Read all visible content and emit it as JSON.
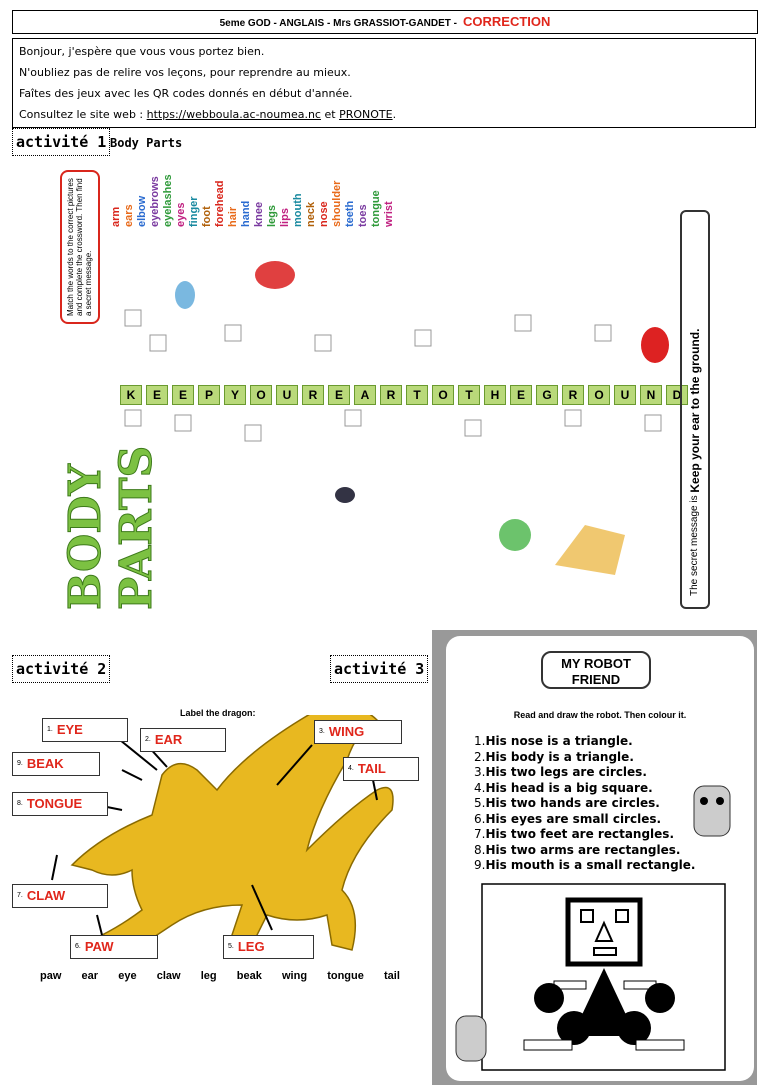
{
  "header": {
    "class_info": "5eme GOD - ANGLAIS - Mrs GRASSIOT-GANDET -",
    "correction": "CORRECTION"
  },
  "intro": {
    "lines": [
      "Bonjour, j'espère que vous vous portez bien.",
      "N'oubliez pas de relire vos leçons, pour reprendre au mieux.",
      "Faîtes des jeux avec les QR codes donnés en début d'année."
    ],
    "consult_prefix": "Consultez le site web :",
    "link": "https://webboula.ac-noumea.nc",
    "joiner": "et",
    "pronote": "PRONOTE",
    "end": "."
  },
  "activity1": {
    "label": "activité 1",
    "title": "Body Parts",
    "poster_title": "BODY PARTS",
    "instructions": "Match the words to the correct pictures and complete the crossword. Then find a secret message.",
    "words": [
      "arm",
      "ears",
      "elbow",
      "eyebrows",
      "eyelashes",
      "eyes",
      "finger",
      "foot",
      "forehead",
      "hair",
      "hand",
      "knee",
      "legs",
      "lips",
      "mouth",
      "neck",
      "nose",
      "shoulder",
      "teeth",
      "toes",
      "tongue",
      "wrist"
    ],
    "key_row": [
      "K",
      "E",
      "E",
      "P",
      "Y",
      "O",
      "U",
      "R",
      "E",
      "A",
      "R",
      "T",
      "O",
      "T",
      "H",
      "E",
      "G",
      "R",
      "O",
      "U",
      "N",
      "D"
    ],
    "secret_prefix": "The secret message is",
    "secret": "Keep your ear to the ground."
  },
  "activity2": {
    "label": "activité 2",
    "dragon_title": "Label the dragon:",
    "labels": [
      {
        "num": "1.",
        "text": "EYE"
      },
      {
        "num": "2.",
        "text": "EAR"
      },
      {
        "num": "3.",
        "text": "WING"
      },
      {
        "num": "4.",
        "text": "TAIL"
      },
      {
        "num": "9.",
        "text": "BEAK"
      },
      {
        "num": "8.",
        "text": "TONGUE"
      },
      {
        "num": "7.",
        "text": "CLAW"
      },
      {
        "num": "6.",
        "text": "PAW"
      },
      {
        "num": "5.",
        "text": "LEG"
      }
    ],
    "word_bank": [
      "paw",
      "ear",
      "eye",
      "claw",
      "leg",
      "beak",
      "wing",
      "tongue",
      "tail"
    ]
  },
  "activity3": {
    "label": "activité 3",
    "title": "MY ROBOT FRIEND",
    "instruction": "Read and draw the robot. Then colour it.",
    "items": [
      {
        "num": "1.",
        "text": "His nose is a triangle."
      },
      {
        "num": "2.",
        "text": "His body is a triangle."
      },
      {
        "num": "3.",
        "text": "His two legs are circles."
      },
      {
        "num": "4.",
        "text": "His head is a big square."
      },
      {
        "num": "5.",
        "text": "His two hands are circles."
      },
      {
        "num": "6.",
        "text": "His eyes are small circles."
      },
      {
        "num": "7.",
        "text": "His two feet are rectangles."
      },
      {
        "num": "8.",
        "text": "His two arms are rectangles."
      },
      {
        "num": "9.",
        "text": "His mouth is a small rectangle."
      }
    ]
  }
}
